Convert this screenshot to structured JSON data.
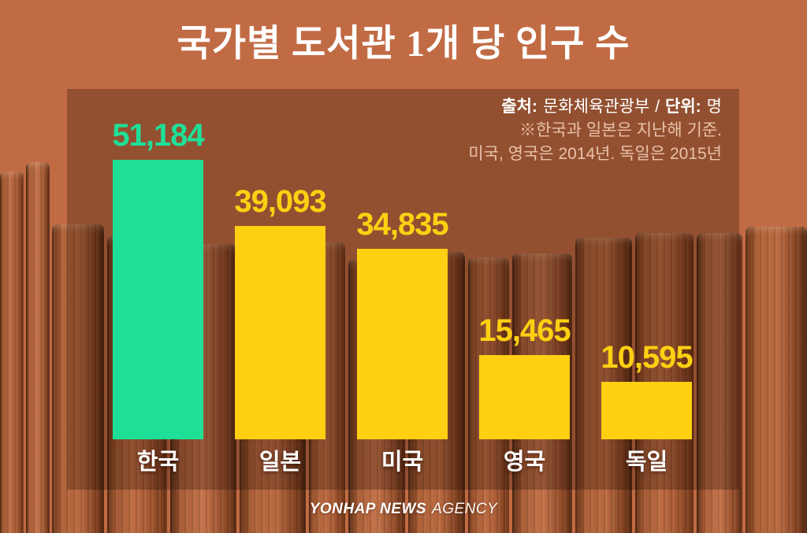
{
  "title": "국가별 도서관 1개 당 인구 수",
  "source_note": {
    "source_label": "출처:",
    "source_value": "문화체육관광부",
    "separator": "/",
    "unit_label": "단위:",
    "unit_value": "명",
    "note_line1": "※한국과 일본은 지난해 기준.",
    "note_line2": "미국, 영국은 2014년. 독일은 2015년"
  },
  "chart_data": {
    "type": "bar",
    "title": "국가별 도서관 1개 당 인구 수",
    "source": "문화체육관광부",
    "unit": "명",
    "categories": [
      "한국",
      "일본",
      "미국",
      "영국",
      "독일"
    ],
    "values": [
      51184,
      39093,
      34835,
      15465,
      10595
    ],
    "value_labels": [
      "51,184",
      "39,093",
      "34,835",
      "15,465",
      "10,595"
    ],
    "series": [
      {
        "name": "도서관 1개 당 인구 수",
        "values": [
          51184,
          39093,
          34835,
          15465,
          10595
        ]
      }
    ],
    "bar_colors": [
      "#1fdf97",
      "#ffd012",
      "#ffd012",
      "#ffd012",
      "#ffd012"
    ],
    "highlight_category": "한국",
    "ylim": [
      0,
      51184
    ],
    "xlabel": "",
    "ylabel": "",
    "grid": false,
    "legend": "none"
  },
  "footer": {
    "logo_bold": "YONHAP NEWS",
    "logo_light": "AGENCY"
  },
  "colors": {
    "background": "#c16b44",
    "panel_overlay": "#8d4e30",
    "bar_highlight": "#1fdf97",
    "bar_default": "#ffd012",
    "title_text": "#ffffff",
    "note_text": "#e9c2aa",
    "category_text": "#ffffff"
  }
}
